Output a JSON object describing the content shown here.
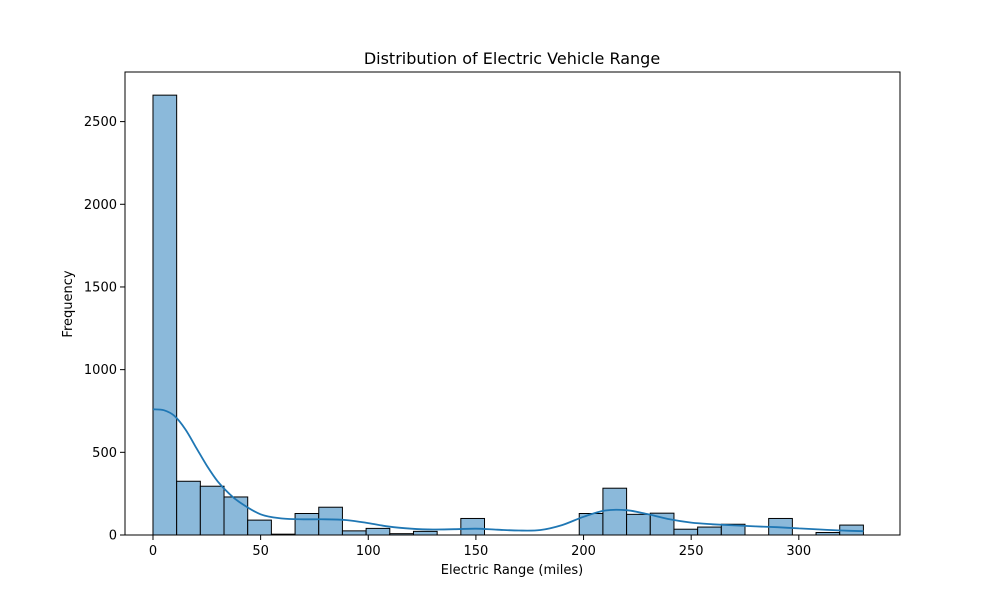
{
  "chart_data": {
    "type": "bar",
    "title": "Distribution of Electric Vehicle Range",
    "xlabel": "Electric Range (miles)",
    "ylabel": "Frequency",
    "xlim": [
      -13,
      347
    ],
    "ylim": [
      0,
      2800
    ],
    "xticks": [
      0,
      50,
      100,
      150,
      200,
      250,
      300
    ],
    "yticks": [
      0,
      500,
      1000,
      1500,
      2000,
      2500
    ],
    "bin_start": 0,
    "bin_width": 11,
    "counts": [
      2660,
      325,
      295,
      230,
      90,
      5,
      130,
      168,
      25,
      40,
      8,
      22,
      0,
      100,
      0,
      0,
      0,
      0,
      130,
      283,
      125,
      132,
      35,
      48,
      65,
      0,
      100,
      0,
      15,
      60
    ],
    "kde": {
      "x": [
        0,
        5,
        10,
        15,
        20,
        25,
        30,
        35,
        40,
        50,
        60,
        70,
        80,
        90,
        100,
        110,
        120,
        130,
        140,
        150,
        160,
        170,
        180,
        190,
        200,
        210,
        220,
        230,
        240,
        250,
        260,
        270,
        280,
        290,
        300,
        310,
        320,
        330
      ],
      "y": [
        760,
        755,
        720,
        640,
        530,
        420,
        325,
        255,
        200,
        125,
        100,
        95,
        95,
        90,
        72,
        50,
        38,
        33,
        35,
        38,
        32,
        27,
        30,
        60,
        110,
        148,
        150,
        125,
        95,
        75,
        65,
        58,
        52,
        47,
        40,
        33,
        27,
        23
      ]
    },
    "bar_color": "#8bb9da",
    "bar_edge_color": "#000000",
    "kde_color": "#1f77b4",
    "grid": false,
    "legend": "none"
  }
}
